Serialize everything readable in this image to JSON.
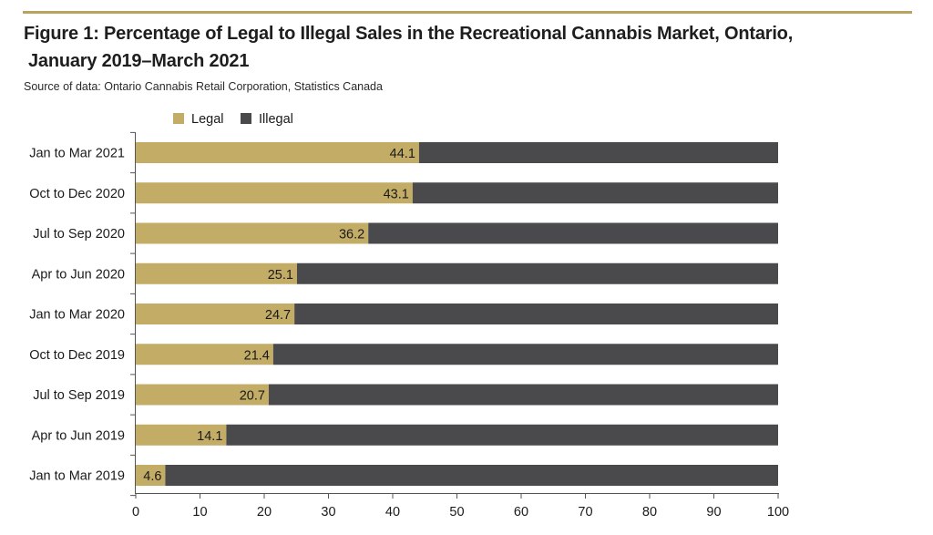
{
  "title_line1": "Figure 1: Percentage of Legal to Illegal Sales in the Recreational Cannabis Market, Ontario,",
  "title_line2": "January 2019–March 2021",
  "source": "Source of data: Ontario Cannabis Retail Corporation, Statistics Canada",
  "colors": {
    "legal": "#c2ac66",
    "illegal": "#4a4a4d",
    "accent_rule": "#b9a35e"
  },
  "chart_data": {
    "type": "bar",
    "orientation": "horizontal",
    "stacked": true,
    "categories": [
      "Jan to Mar 2021",
      "Oct to Dec 2020",
      "Jul to Sep 2020",
      "Apr to Jun 2020",
      "Jan to Mar 2020",
      "Oct to Dec 2019",
      "Jul to Sep 2019",
      "Apr to Jun 2019",
      "Jan to Mar 2019"
    ],
    "series": [
      {
        "name": "Legal",
        "values": [
          44.1,
          43.1,
          36.2,
          25.1,
          24.7,
          21.4,
          20.7,
          14.1,
          4.6
        ],
        "data_labels": [
          "44.1",
          "43.1",
          "36.2",
          "25.1",
          "24.7",
          "21.4",
          "20.7",
          "14.1",
          "4.6"
        ]
      },
      {
        "name": "Illegal",
        "values": [
          55.9,
          56.9,
          63.8,
          74.9,
          75.3,
          78.6,
          79.3,
          85.9,
          95.4
        ]
      }
    ],
    "xlim": [
      0,
      100
    ],
    "xticks": [
      "0",
      "10",
      "20",
      "30",
      "40",
      "50",
      "60",
      "70",
      "80",
      "90",
      "100"
    ],
    "xlabel": "",
    "ylabel": "",
    "grid": false,
    "legend_position": "top-left"
  }
}
